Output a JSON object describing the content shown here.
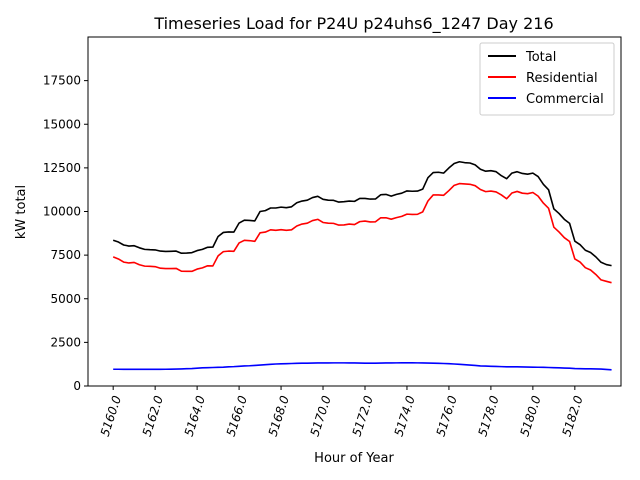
{
  "chart_data": {
    "type": "line",
    "title": "Timeseries Load for P24U p24uhs6_1247  Day 216",
    "xlabel": "Hour of Year",
    "ylabel": "kW total",
    "xlim": [
      5158.8,
      5184.2
    ],
    "ylim": [
      0,
      20000
    ],
    "xticks": [
      5160,
      5162,
      5164,
      5166,
      5168,
      5170,
      5172,
      5174,
      5176,
      5178,
      5180,
      5182
    ],
    "xtick_labels": [
      "5160.0",
      "5162.0",
      "5164.0",
      "5166.0",
      "5168.0",
      "5170.0",
      "5172.0",
      "5174.0",
      "5176.0",
      "5178.0",
      "5180.0",
      "5182.0"
    ],
    "yticks": [
      0,
      2500,
      5000,
      7500,
      10000,
      12500,
      15000,
      17500
    ],
    "ytick_labels": [
      "0",
      "2500",
      "5000",
      "7500",
      "10000",
      "12500",
      "15000",
      "17500"
    ],
    "legend_position": "top-right",
    "x_start": 5160,
    "x_step": 0.25,
    "series": [
      {
        "name": "Total",
        "color": "#000000",
        "values": [
          8350,
          8250,
          8080,
          8020,
          8040,
          7920,
          7830,
          7810,
          7800,
          7730,
          7710,
          7720,
          7730,
          7610,
          7620,
          7640,
          7760,
          7830,
          7950,
          7960,
          8570,
          8800,
          8830,
          8820,
          9340,
          9500,
          9490,
          9460,
          10000,
          10050,
          10200,
          10200,
          10250,
          10220,
          10270,
          10500,
          10600,
          10650,
          10800,
          10870,
          10700,
          10650,
          10640,
          10540,
          10560,
          10600,
          10580,
          10750,
          10750,
          10710,
          10720,
          10960,
          10980,
          10880,
          10980,
          11050,
          11180,
          11160,
          11170,
          11280,
          11940,
          12230,
          12250,
          12200,
          12500,
          12750,
          12850,
          12800,
          12780,
          12670,
          12420,
          12310,
          12340,
          12280,
          12050,
          11880,
          12200,
          12280,
          12180,
          12140,
          12200,
          12000,
          11560,
          11240,
          10150,
          9880,
          9550,
          9320,
          8300,
          8100,
          7780,
          7650,
          7400,
          7090,
          6960,
          6900
        ]
      },
      {
        "name": "Residential",
        "color": "#ff0000",
        "values": [
          7400,
          7280,
          7100,
          7050,
          7080,
          6950,
          6870,
          6860,
          6840,
          6750,
          6730,
          6730,
          6740,
          6580,
          6570,
          6570,
          6700,
          6770,
          6890,
          6880,
          7460,
          7700,
          7730,
          7720,
          8200,
          8350,
          8330,
          8290,
          8780,
          8820,
          8950,
          8920,
          8960,
          8920,
          8950,
          9170,
          9280,
          9330,
          9480,
          9550,
          9370,
          9330,
          9320,
          9220,
          9230,
          9280,
          9250,
          9420,
          9450,
          9400,
          9410,
          9640,
          9640,
          9560,
          9650,
          9720,
          9850,
          9830,
          9840,
          9980,
          10600,
          10950,
          10950,
          10930,
          11200,
          11500,
          11600,
          11580,
          11560,
          11480,
          11260,
          11140,
          11170,
          11120,
          10950,
          10730,
          11060,
          11150,
          11050,
          11020,
          11090,
          10880,
          10480,
          10180,
          9100,
          8820,
          8500,
          8280,
          7280,
          7100,
          6780,
          6650,
          6390,
          6080,
          6000,
          5920
        ]
      },
      {
        "name": "Commercial",
        "color": "#0000ff",
        "values": [
          960,
          960,
          955,
          955,
          955,
          955,
          955,
          955,
          955,
          955,
          960,
          965,
          970,
          980,
          990,
          1000,
          1020,
          1040,
          1050,
          1060,
          1070,
          1080,
          1100,
          1110,
          1130,
          1150,
          1160,
          1180,
          1200,
          1220,
          1240,
          1260,
          1270,
          1280,
          1290,
          1300,
          1305,
          1310,
          1315,
          1320,
          1320,
          1320,
          1325,
          1325,
          1325,
          1320,
          1320,
          1315,
          1310,
          1305,
          1310,
          1315,
          1320,
          1320,
          1325,
          1330,
          1330,
          1330,
          1325,
          1320,
          1315,
          1310,
          1300,
          1290,
          1280,
          1260,
          1240,
          1220,
          1200,
          1180,
          1150,
          1140,
          1130,
          1120,
          1110,
          1100,
          1100,
          1100,
          1090,
          1085,
          1080,
          1075,
          1070,
          1060,
          1050,
          1040,
          1030,
          1020,
          1000,
          990,
          985,
          985,
          980,
          970,
          950,
          930
        ]
      }
    ]
  }
}
